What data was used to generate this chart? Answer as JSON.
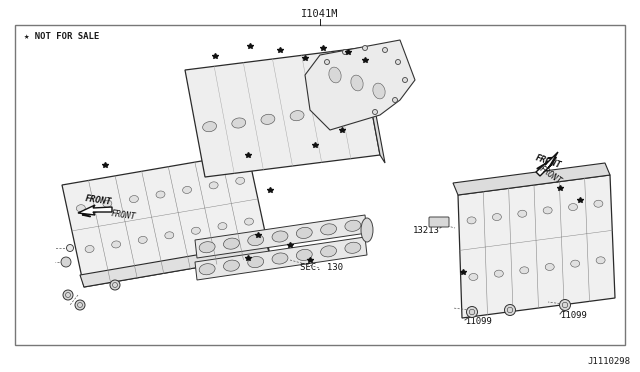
{
  "bg_color": "#ffffff",
  "border_color": "#777777",
  "text_color": "#1a1a1a",
  "title_above": "I1041M",
  "watermark": "★ NOT FOR SALE",
  "part_number_br": "J1110298",
  "sec130": "SEC. 130",
  "front_left": "FRONT",
  "front_right": "FRONT",
  "label_13213": "13213",
  "label_11099a": "I1099",
  "label_11099b": "I1099",
  "fig_w": 6.4,
  "fig_h": 3.72,
  "dpi": 100
}
